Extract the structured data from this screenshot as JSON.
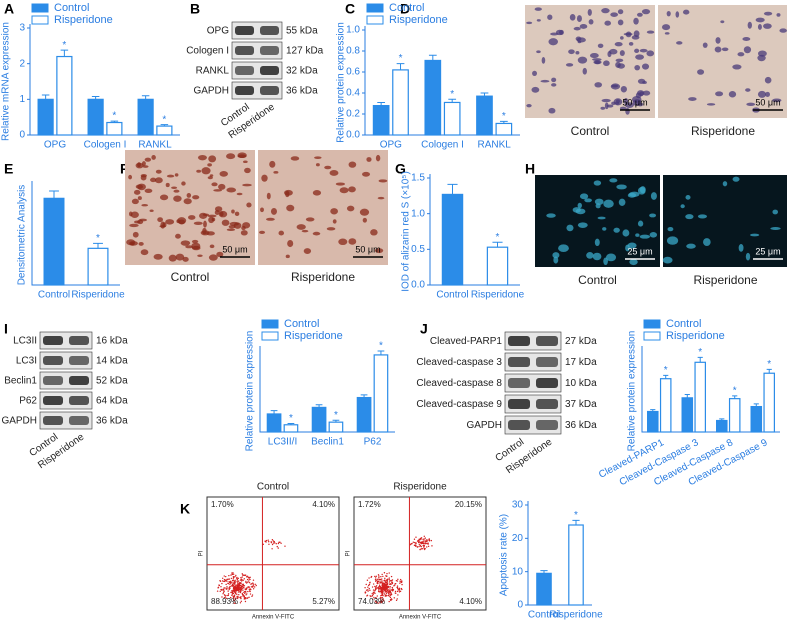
{
  "panel_labels": [
    "A",
    "B",
    "C",
    "D",
    "E",
    "F",
    "G",
    "H",
    "I",
    "J",
    "K"
  ],
  "chart_data": [
    {
      "type": "bar",
      "ylabel": "Relative mRNA expression",
      "categories": [
        "OPG",
        "Cologen I",
        "RANKL"
      ],
      "ylim": [
        0,
        3
      ],
      "yticks": [
        0,
        1,
        2,
        3
      ],
      "annotation": {
        "text": "*",
        "series": 1
      },
      "series": [
        {
          "name": "Control",
          "color": "#2b8ce8",
          "style": "filled",
          "values": [
            1.0,
            1.0,
            1.0
          ],
          "errors": [
            0.12,
            0.08,
            0.1
          ]
        },
        {
          "name": "Risperidone",
          "color": "#2b8ce8",
          "style": "outline",
          "values": [
            2.2,
            0.35,
            0.25
          ],
          "errors": [
            0.18,
            0.04,
            0.04
          ]
        }
      ]
    },
    {
      "type": "bar",
      "ylabel": "Relative protein expression",
      "categories": [
        "OPG",
        "Cologen I",
        "RANKL"
      ],
      "ylim": [
        0,
        1.0
      ],
      "yticks": [
        {
          "value": 0,
          "label": "0.0"
        },
        0.2,
        0.4,
        0.6,
        0.8,
        {
          "value": 1,
          "label": "1.0"
        }
      ],
      "annotation": {
        "text": "*",
        "series": 1
      },
      "series": [
        {
          "name": "Control",
          "color": "#2b8ce8",
          "style": "filled",
          "values": [
            0.28,
            0.71,
            0.37
          ],
          "errors": [
            0.03,
            0.05,
            0.03
          ]
        },
        {
          "name": "Risperidone",
          "color": "#2b8ce8",
          "style": "outline",
          "values": [
            0.62,
            0.31,
            0.11
          ],
          "errors": [
            0.06,
            0.03,
            0.02
          ]
        }
      ]
    },
    {
      "type": "bar",
      "ylabel": "Densitometric Analysis",
      "categories": [
        "Control",
        "Risperidone"
      ],
      "ylim": [
        0,
        3
      ],
      "values": [
        2.6,
        1.1
      ],
      "errors": [
        0.22,
        0.15
      ],
      "colors": [
        "#2b8ce8",
        "#2b8ce8"
      ],
      "styles": [
        "filled",
        "outline"
      ],
      "annotation": {
        "text": "*",
        "bar": 1
      }
    },
    {
      "type": "bar",
      "ylabel": "IOD of alizarin red S (×10⁵)",
      "categories": [
        "Control",
        "Risperidone"
      ],
      "ylim": [
        0,
        1.5
      ],
      "yticks": [
        {
          "value": 0,
          "label": "0.0"
        },
        0.5,
        {
          "value": 1,
          "label": "1.0"
        },
        1.5
      ],
      "values": [
        1.27,
        0.53
      ],
      "errors": [
        0.14,
        0.07
      ],
      "colors": [
        "#2b8ce8",
        "#2b8ce8"
      ],
      "styles": [
        "filled",
        "outline"
      ],
      "annotation": {
        "text": "*",
        "bar": 1
      }
    },
    {
      "type": "bar",
      "ylabel": "Relative protein expression",
      "categories": [
        "LC3II/I",
        "Beclin1",
        "P62"
      ],
      "ylim": [
        0,
        2.5
      ],
      "annotation": {
        "text": "*",
        "series": 1
      },
      "series": [
        {
          "name": "Control",
          "color": "#2b8ce8",
          "style": "filled",
          "values": [
            0.55,
            0.75,
            1.05
          ],
          "errors": [
            0.1,
            0.08,
            0.08
          ]
        },
        {
          "name": "Risperidone",
          "color": "#2b8ce8",
          "style": "outline",
          "values": [
            0.22,
            0.3,
            2.35
          ],
          "errors": [
            0.04,
            0.06,
            0.12
          ]
        }
      ]
    },
    {
      "type": "bar",
      "ylabel": "Relative protein expression",
      "categories": [
        "Cleaved-PARP1",
        "Cleaved-Caspase 3",
        "Cleaved-Caspase 8",
        "Cleaved-Caspase 9"
      ],
      "ylim": [
        0,
        3
      ],
      "annotation": {
        "text": "*",
        "series": 1
      },
      "series": [
        {
          "name": "Control",
          "color": "#2b8ce8",
          "style": "filled",
          "values": [
            0.75,
            1.25,
            0.42,
            0.93
          ],
          "errors": [
            0.07,
            0.12,
            0.06,
            0.1
          ]
        },
        {
          "name": "Risperidone",
          "color": "#2b8ce8",
          "style": "outline",
          "values": [
            1.95,
            2.55,
            1.22,
            2.15
          ],
          "errors": [
            0.12,
            0.18,
            0.1,
            0.14
          ]
        }
      ]
    },
    {
      "type": "bar",
      "ylabel": "Apoptosis rate (%)",
      "categories": [
        "Control",
        "Risperidone"
      ],
      "ylim": [
        0,
        30
      ],
      "yticks": [
        0,
        10,
        20,
        30
      ],
      "values": [
        9.5,
        24
      ],
      "errors": [
        0.8,
        1.4
      ],
      "colors": [
        "#2b8ce8",
        "#2b8ce8"
      ],
      "styles": [
        "filled",
        "outline"
      ],
      "annotation": {
        "text": "*",
        "bar": 1
      }
    }
  ],
  "blots": [
    {
      "rows": [
        "OPG",
        "Cologen I",
        "RANKL",
        "GAPDH"
      ],
      "kda": [
        "55 kDa",
        "127 kDa",
        "32 kDa",
        "36 kDa"
      ],
      "lanes": [
        "Control",
        "Risperidone"
      ]
    },
    {
      "rows": [
        "LC3II",
        "LC3I",
        "Beclin1",
        "P62",
        "GAPDH"
      ],
      "kda": [
        "16 kDa",
        "14 kDa",
        "52 kDa",
        "64 kDa",
        "36 kDa"
      ],
      "lanes": [
        "Control",
        "Risperidone"
      ]
    },
    {
      "rows": [
        "Cleaved-PARP1",
        "Cleaved-caspase 3",
        "Cleaved-caspase 8",
        "Cleaved-caspase 9",
        "GAPDH"
      ],
      "kda": [
        "27 kDa",
        "17 kDa",
        "10 kDa",
        "37 kDa",
        "36 kDa"
      ],
      "lanes": [
        "Control",
        "Risperidone"
      ]
    }
  ],
  "micrographs": [
    {
      "captions": [
        "Control",
        "Risperidone"
      ],
      "scale": "50 μm"
    },
    {
      "captions": [
        "Control",
        "Risperidone"
      ],
      "scale": "50 μm"
    },
    {
      "captions": [
        "Control",
        "Risperidone"
      ],
      "scale": "25 μm"
    }
  ],
  "flow": {
    "xlabel": "Annexin V-FITC",
    "ylabel": "PI",
    "plots": [
      {
        "title": "Control",
        "quadrants": [
          "1.70%",
          "4.10%",
          "88.93%",
          "5.27%"
        ]
      },
      {
        "title": "Risperidone",
        "quadrants": [
          "1.72%",
          "20.15%",
          "74.03%",
          "4.10%"
        ]
      }
    ]
  }
}
